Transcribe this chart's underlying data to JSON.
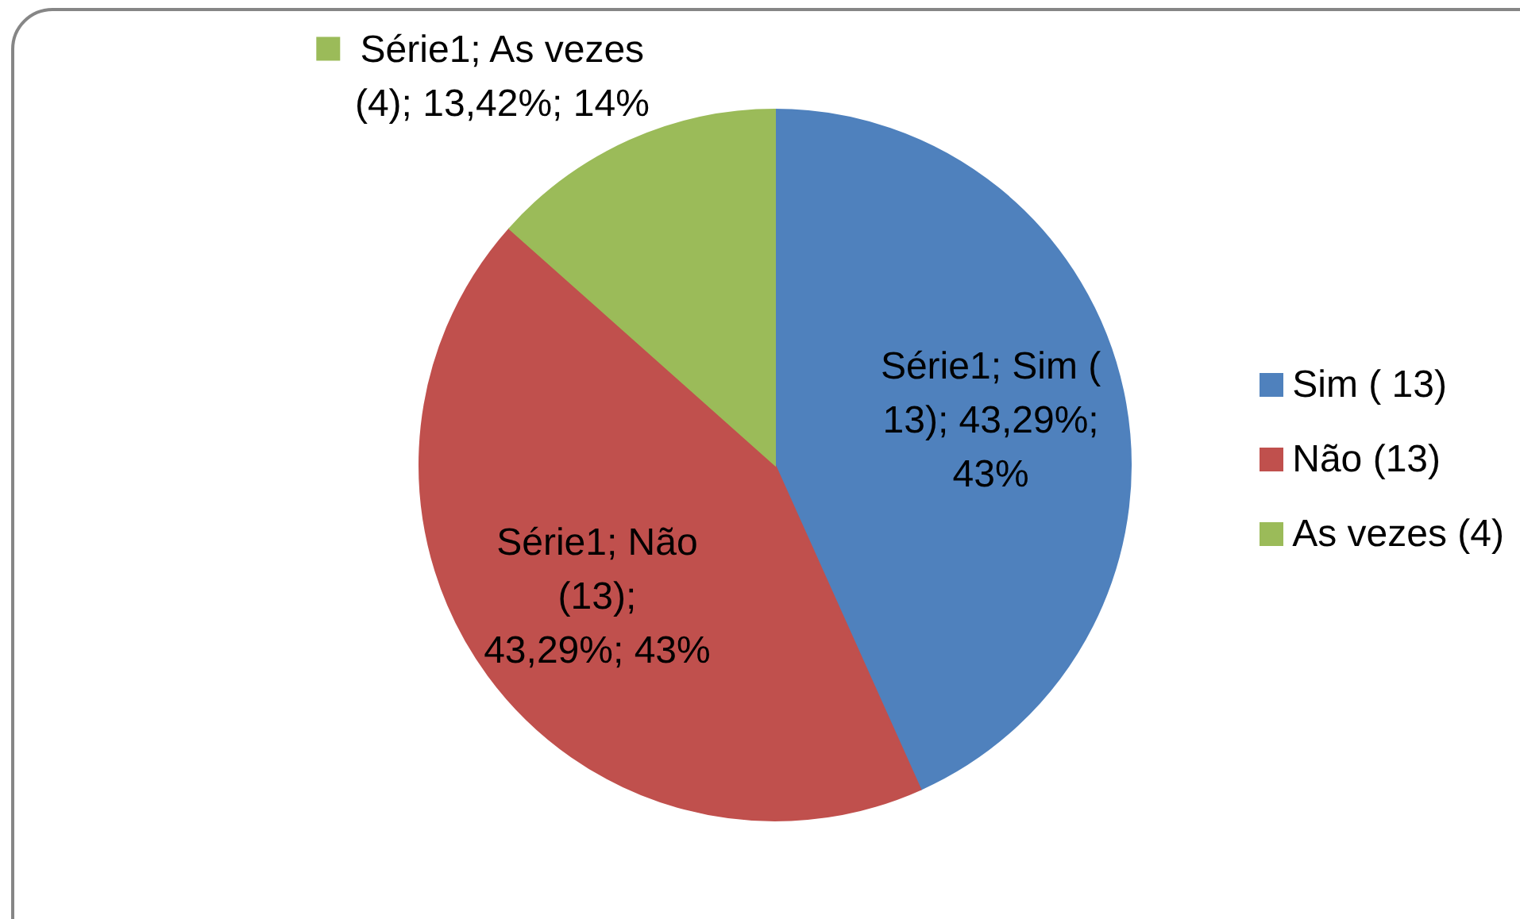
{
  "chart_data": {
    "type": "pie",
    "categories": [
      "Sim ( 13)",
      "Não (13)",
      "As vezes (4)"
    ],
    "values": [
      43.29,
      43.29,
      13.42
    ],
    "colors": [
      "#4f81bd",
      "#c0504d",
      "#9bbb59"
    ],
    "value_labels": [
      "Série1; Sim ( 13); 43,29%; 43%",
      "Série1; Não (13); 43,29%; 43%",
      "Série1; As vezes (4); 13,42%; 14%"
    ],
    "legend": "right"
  }
}
